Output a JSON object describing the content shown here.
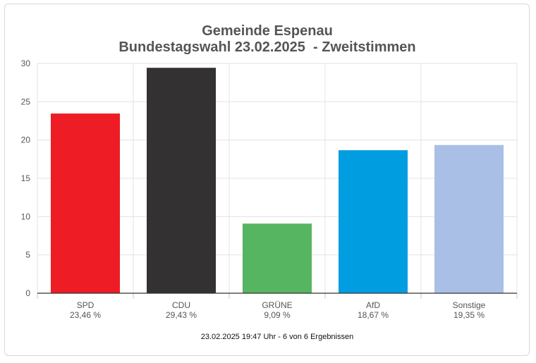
{
  "chart_data": {
    "type": "bar",
    "title": "Gemeinde Espenau",
    "subtitle": "Bundestagswahl 23.02.2025  - Zweitstimmen",
    "categories": [
      "SPD",
      "CDU",
      "GRÜNE",
      "AfD",
      "Sonstige"
    ],
    "values": [
      23.46,
      29.43,
      9.09,
      18.67,
      19.35
    ],
    "value_labels": [
      "23,46 %",
      "29,43 %",
      "9,09 %",
      "18,67 %",
      "19,35 %"
    ],
    "colors": [
      "#ee1c25",
      "#333132",
      "#56b560",
      "#009ee0",
      "#aabfe6"
    ],
    "ylim": [
      0,
      30
    ],
    "yticks": [
      "0",
      "5",
      "10",
      "15",
      "20",
      "25",
      "30"
    ],
    "ytick_values": [
      0,
      5,
      10,
      15,
      20,
      25,
      30
    ],
    "grid": true,
    "xlabel": "",
    "ylabel": "",
    "footer": "23.02.2025 19:47 Uhr - 6 von 6 Ergebnissen"
  }
}
